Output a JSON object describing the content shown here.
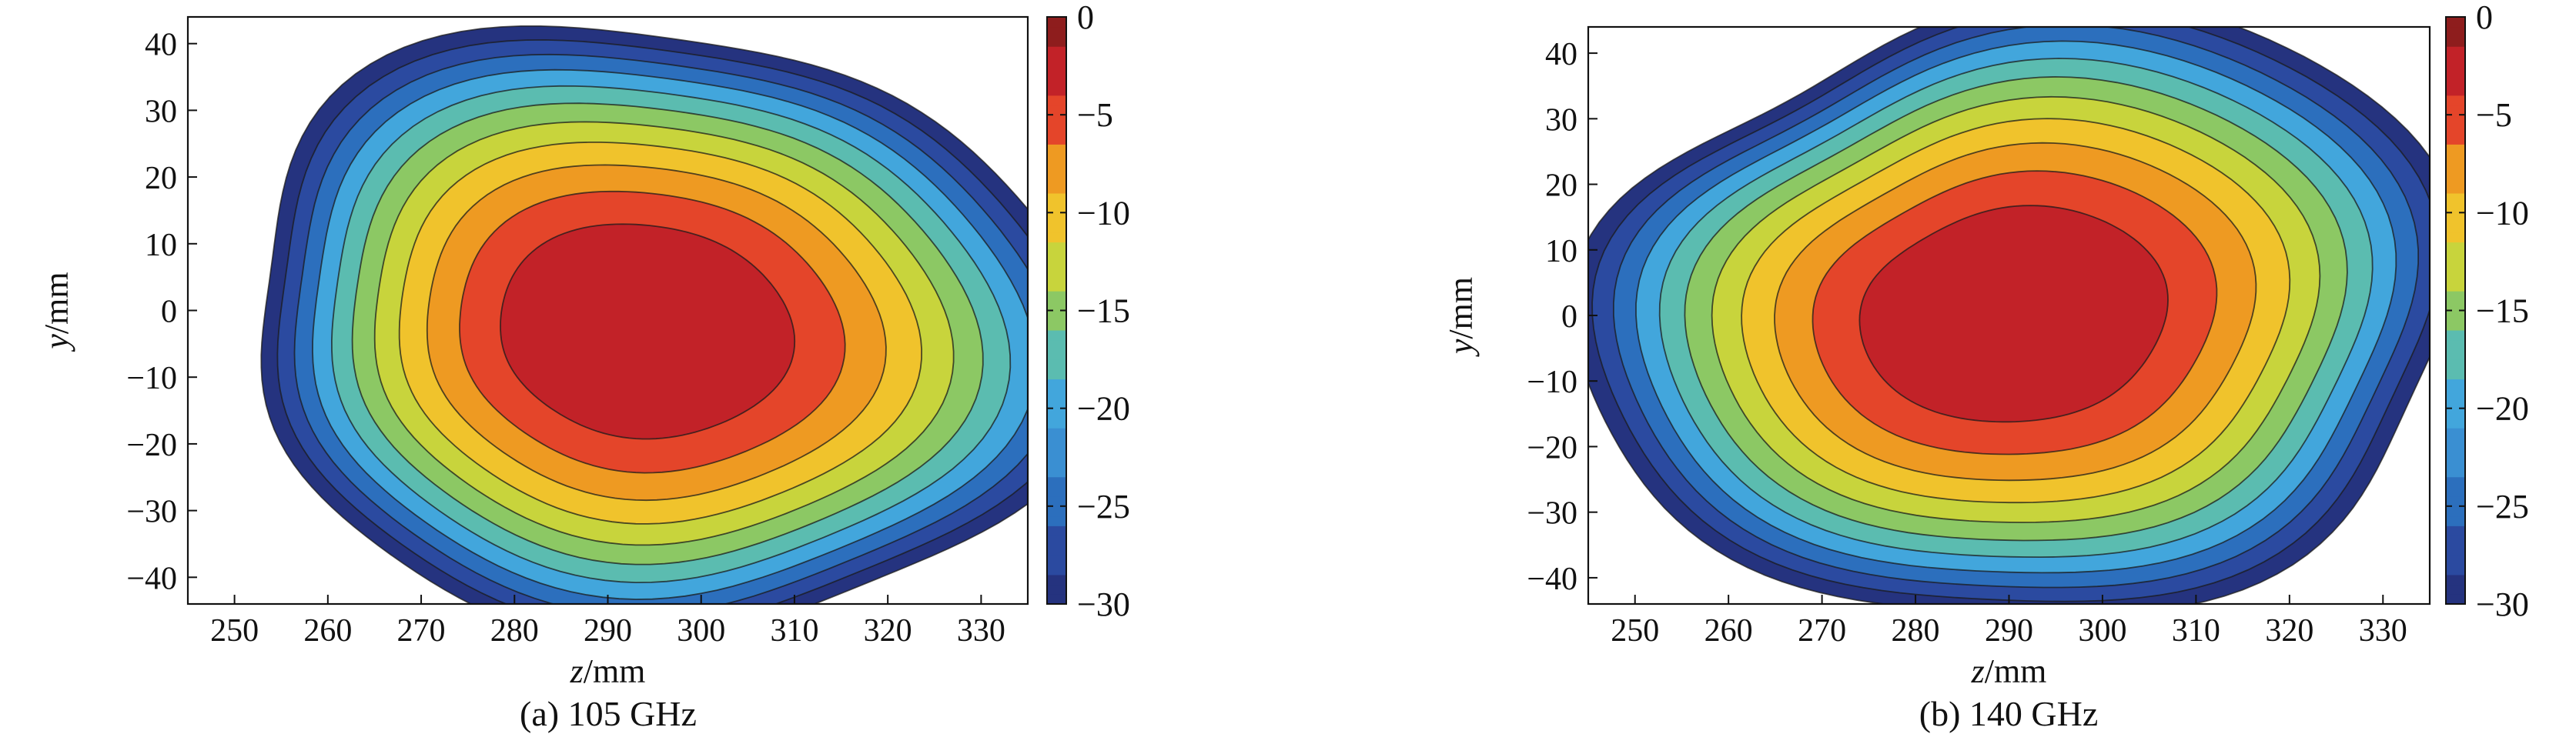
{
  "chart_data": [
    {
      "type": "contour",
      "caption": "(a) 105 GHz",
      "xlabel_var": "z",
      "xlabel_unit": "/mm",
      "ylabel_var": "y",
      "ylabel_unit": "/mm",
      "xlim": [
        245,
        335
      ],
      "ylim": [
        -44,
        44
      ],
      "xticks": [
        250,
        260,
        270,
        280,
        290,
        300,
        310,
        320,
        330
      ],
      "yticks": [
        40,
        30,
        20,
        10,
        0,
        -10,
        -20,
        -30,
        -40
      ],
      "colorbar": {
        "range": [
          -30,
          0
        ],
        "ticks": [
          0,
          -5,
          -10,
          -15,
          -20,
          -25,
          -30
        ],
        "tick_labels": [
          "0",
          "−5",
          "−10",
          "−15",
          "−20",
          "−25",
          "−30"
        ]
      },
      "levels": [
        -28.5,
        -26,
        -23.5,
        -21,
        -18.5,
        -16,
        -13.5,
        -11,
        -8.5,
        -6,
        -3.5
      ],
      "level_colors": [
        "#25337f",
        "#2b4aa0",
        "#2c6fbd",
        "#42a6dc",
        "#5bbcb0",
        "#8cc864",
        "#c8d43c",
        "#f0c32c",
        "#ee9a22",
        "#e4452a",
        "#c22228"
      ],
      "peak": {
        "z": 293,
        "y": -3,
        "value": 0
      },
      "beam_radius_z_at_minus30dB": 46,
      "beam_radius_y_at_minus30dB": 47
    },
    {
      "type": "contour",
      "caption": "(b) 140 GHz",
      "xlabel_var": "z",
      "xlabel_unit": "/mm",
      "ylabel_var": "y",
      "ylabel_unit": "/mm",
      "xlim": [
        245,
        335
      ],
      "ylim": [
        -44,
        44
      ],
      "xticks": [
        250,
        260,
        270,
        280,
        290,
        300,
        310,
        320,
        330
      ],
      "yticks": [
        40,
        30,
        20,
        10,
        0,
        -10,
        -20,
        -30,
        -40
      ],
      "colorbar": {
        "range": [
          -30,
          0
        ],
        "ticks": [
          0,
          -5,
          -10,
          -15,
          -20,
          -25,
          -30
        ],
        "tick_labels": [
          "0",
          "−5",
          "−10",
          "−15",
          "−20",
          "−25",
          "−30"
        ]
      },
      "levels": [
        -28.5,
        -26,
        -23.5,
        -21,
        -18.5,
        -16,
        -13.5,
        -11,
        -8.5,
        -6,
        -3.5
      ],
      "level_colors": [
        "#25337f",
        "#2b4aa0",
        "#2c6fbd",
        "#42a6dc",
        "#5bbcb0",
        "#8cc864",
        "#c8d43c",
        "#f0c32c",
        "#ee9a22",
        "#e4452a",
        "#c22228"
      ],
      "peak": {
        "z": 290,
        "y": 0,
        "value": 0
      },
      "beam_radius_z_at_minus30dB": 48,
      "beam_radius_y_at_minus30dB": 48
    }
  ]
}
